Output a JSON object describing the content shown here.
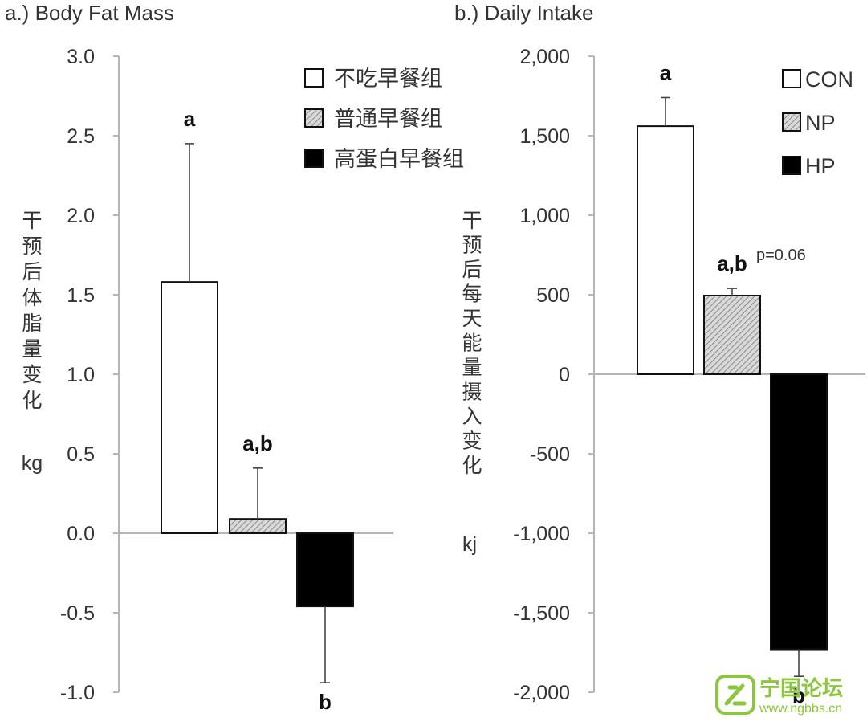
{
  "chart_data": [
    {
      "type": "bar",
      "title": "a.) Body Fat Mass",
      "ylabel_chars": [
        "干",
        "预",
        "后",
        "体",
        "脂",
        "量",
        "变",
        "化"
      ],
      "yunit": "kg",
      "ylim": [
        -1.0,
        3.0
      ],
      "yticks": [
        "3.0",
        "2.5",
        "2.0",
        "1.5",
        "1.0",
        "0.5",
        "0.0",
        "-0.5",
        "-1.0"
      ],
      "ytick_values": [
        3.0,
        2.5,
        2.0,
        1.5,
        1.0,
        0.5,
        0.0,
        -0.5,
        -1.0
      ],
      "legend": [
        "不吃早餐组",
        "普通早餐组",
        "高蛋白早餐组"
      ],
      "legend_placement": "top-right",
      "series": [
        {
          "name": "不吃早餐组",
          "value": 1.58,
          "error": 0.87,
          "error_dir": "up",
          "label": "a",
          "fill": "#ffffff"
        },
        {
          "name": "普通早餐组",
          "value": 0.09,
          "error": 0.32,
          "error_dir": "up",
          "label": "a,b",
          "fill": "hatch"
        },
        {
          "name": "高蛋白早餐组",
          "value": -0.46,
          "error": 0.48,
          "error_dir": "down",
          "label": "b",
          "fill": "#000000"
        }
      ]
    },
    {
      "type": "bar",
      "title": "b.) Daily Intake",
      "ylabel_chars": [
        "干",
        "预",
        "后",
        "每",
        "天",
        "能",
        "量",
        "摄",
        "入",
        "变",
        "化"
      ],
      "yunit": "kj",
      "ylim": [
        -2000,
        2000
      ],
      "yticks": [
        "2,000",
        "1,500",
        "1,000",
        "500",
        "0",
        "-500",
        "-1,000",
        "-1,500",
        "-2,000"
      ],
      "ytick_values": [
        2000,
        1500,
        1000,
        500,
        0,
        -500,
        -1000,
        -1500,
        -2000
      ],
      "legend": [
        "CON",
        "NP",
        "HP"
      ],
      "legend_placement": "top-right",
      "annotation": "p=0.06",
      "series": [
        {
          "name": "CON",
          "value": 1560,
          "error": 180,
          "error_dir": "up",
          "label": "a",
          "fill": "#ffffff"
        },
        {
          "name": "NP",
          "value": 495,
          "error": 45,
          "error_dir": "up",
          "label": "a,b",
          "fill": "hatch"
        },
        {
          "name": "HP",
          "value": -1730,
          "error": 170,
          "error_dir": "down",
          "label": "b",
          "fill": "#000000"
        }
      ]
    }
  ],
  "watermark": {
    "name": "宁国论坛",
    "url": "www.ngbbs.cn",
    "color": "#8cc63f"
  }
}
